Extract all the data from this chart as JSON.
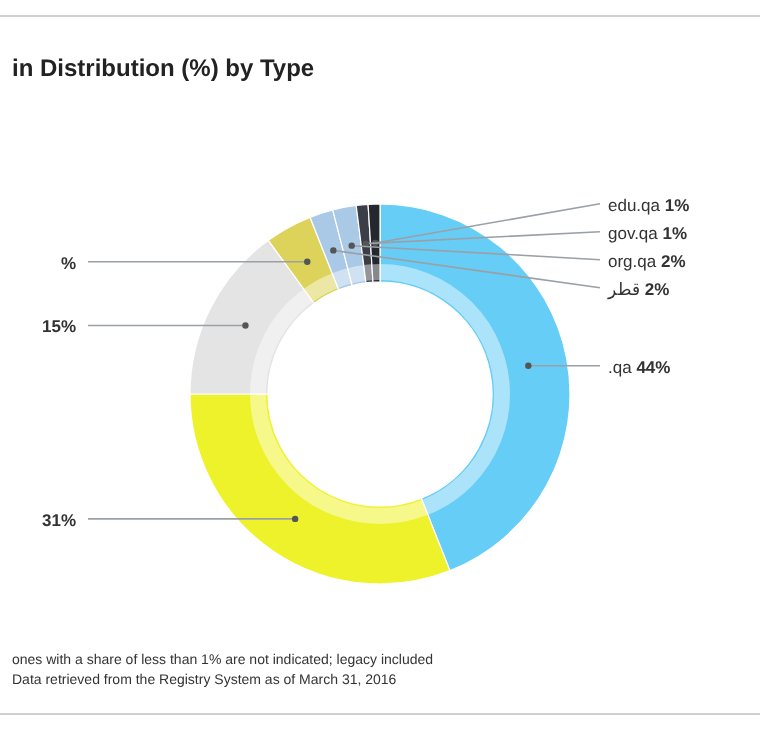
{
  "chart_data": {
    "type": "donut",
    "title": "in Distribution (%) by Type",
    "categories": [
      ".qa",
      null,
      null,
      null,
      "قطر",
      "org.qa",
      "gov.qa",
      "edu.qa"
    ],
    "values": [
      44,
      31,
      15,
      4,
      2,
      2,
      1,
      1
    ],
    "colors": [
      "#66cdf6",
      "#eef22a",
      "#e4e4e4",
      "#ddd35a",
      "#a9c9e7",
      "#a9c9e7",
      "#3b3e46",
      "#25272e"
    ],
    "value_labels": [
      "44%",
      "31%",
      "15%",
      "%",
      "2%",
      "2%",
      "1%",
      "1%"
    ],
    "annotations": [
      "ones with a share of less than 1% are not indicated; legacy included",
      "Data retrieved from the Registry System as of March 31, 2016"
    ]
  }
}
